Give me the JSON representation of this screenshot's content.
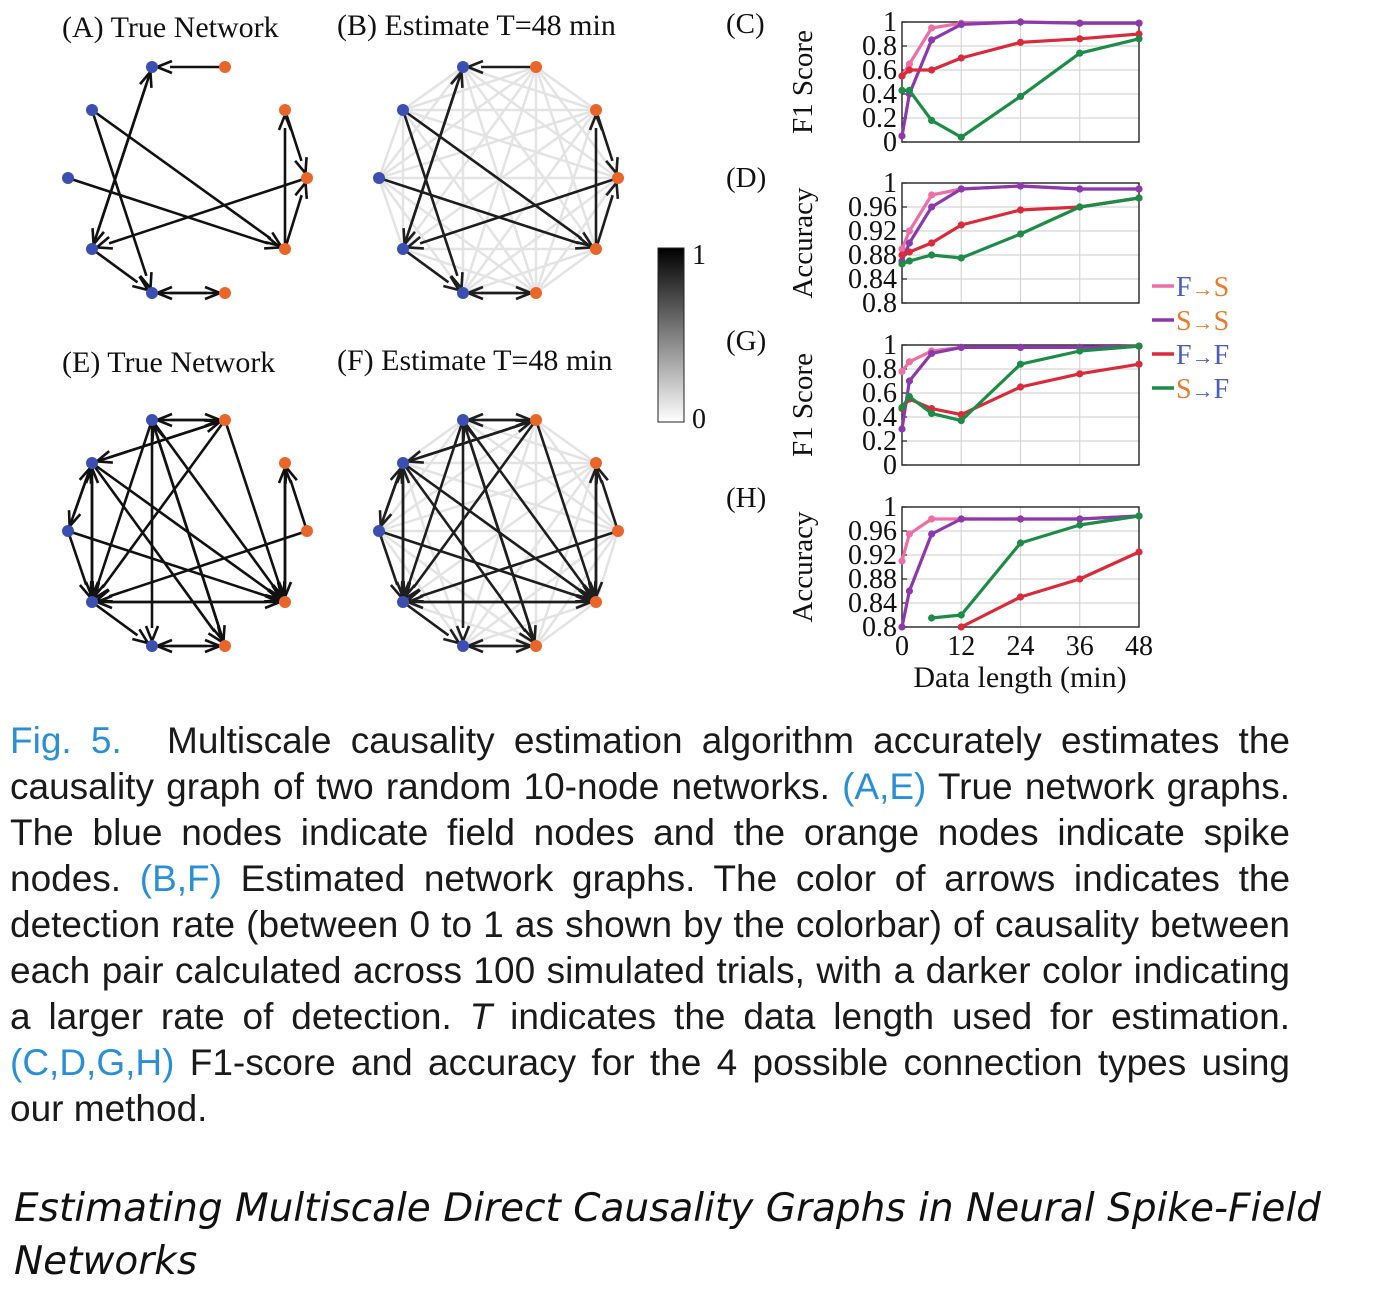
{
  "networks": {
    "titles": {
      "A": "(A) True Network",
      "B": "(B) Estimate T=48 min",
      "E": "(E) True Network",
      "F": "(F) Estimate T=48 min"
    },
    "node_types": [
      "field",
      "field",
      "field",
      "field",
      "field",
      "spike",
      "spike",
      "spike",
      "spike",
      "spike"
    ],
    "colors": {
      "field": "#3a4fb0",
      "spike": "#e8662a"
    },
    "network1_edges": [
      [
        5,
        0
      ],
      [
        1,
        4
      ],
      [
        3,
        0
      ],
      [
        0,
        3
      ],
      [
        2,
        8
      ],
      [
        8,
        6
      ],
      [
        8,
        7
      ],
      [
        6,
        7
      ],
      [
        7,
        3
      ],
      [
        3,
        4
      ],
      [
        4,
        9
      ],
      [
        9,
        4
      ],
      [
        1,
        8
      ]
    ],
    "network2_edges": [
      [
        5,
        0
      ],
      [
        0,
        5
      ],
      [
        1,
        5
      ],
      [
        5,
        1
      ],
      [
        1,
        2
      ],
      [
        2,
        1
      ],
      [
        1,
        3
      ],
      [
        3,
        1
      ],
      [
        0,
        3
      ],
      [
        2,
        3
      ],
      [
        1,
        8
      ],
      [
        2,
        8
      ],
      [
        0,
        8
      ],
      [
        5,
        8
      ],
      [
        6,
        8
      ],
      [
        7,
        6
      ],
      [
        8,
        6
      ],
      [
        7,
        3
      ],
      [
        0,
        9
      ],
      [
        9,
        0
      ],
      [
        4,
        9
      ],
      [
        9,
        4
      ],
      [
        1,
        9
      ],
      [
        8,
        3
      ],
      [
        3,
        8
      ],
      [
        0,
        4
      ],
      [
        3,
        4
      ],
      [
        5,
        3
      ]
    ]
  },
  "colorbar": {
    "max_label": "1",
    "min_label": "0"
  },
  "chart_data": [
    {
      "type": "line",
      "panel": "(C)",
      "ylabel": "F1 Score",
      "x": [
        0,
        1.5,
        6,
        12,
        24,
        36,
        48
      ],
      "ylim": [
        0,
        1
      ],
      "yticks": [
        "0",
        "0.2",
        "0.4",
        "0.6",
        "0.8",
        "1"
      ],
      "series": [
        {
          "name": "F→S",
          "values": [
            0.55,
            0.65,
            0.95,
            0.99,
            1.0,
            0.99,
            0.99
          ]
        },
        {
          "name": "S→S",
          "values": [
            0.05,
            0.4,
            0.85,
            0.98,
            1.0,
            0.99,
            0.99
          ]
        },
        {
          "name": "F→F",
          "values": [
            0.55,
            0.6,
            0.6,
            0.7,
            0.83,
            0.86,
            0.9
          ]
        },
        {
          "name": "S→F",
          "values": [
            0.43,
            0.43,
            0.18,
            0.04,
            0.38,
            0.74,
            0.86
          ]
        }
      ]
    },
    {
      "type": "line",
      "panel": "(D)",
      "ylabel": "Accuracy",
      "x": [
        0,
        1.5,
        6,
        12,
        24,
        36,
        48
      ],
      "ylim": [
        0.8,
        1
      ],
      "yticks": [
        "0.8",
        "0.84",
        "0.88",
        "0.92",
        "0.96",
        "1"
      ],
      "series": [
        {
          "name": "F→S",
          "values": [
            0.89,
            0.92,
            0.98,
            0.99,
            0.995,
            0.99,
            0.99
          ]
        },
        {
          "name": "S→S",
          "values": [
            0.87,
            0.9,
            0.96,
            0.99,
            0.995,
            0.99,
            0.99
          ]
        },
        {
          "name": "F→F",
          "values": [
            0.88,
            0.885,
            0.9,
            0.93,
            0.955,
            0.96,
            0.975
          ]
        },
        {
          "name": "S→F",
          "values": [
            0.865,
            0.87,
            0.88,
            0.875,
            0.915,
            0.96,
            0.975
          ]
        }
      ]
    },
    {
      "type": "line",
      "panel": "(G)",
      "ylabel": "F1 Score",
      "x": [
        0,
        1.5,
        6,
        12,
        24,
        36,
        48
      ],
      "ylim": [
        0,
        1
      ],
      "yticks": [
        "0",
        "0.2",
        "0.4",
        "0.6",
        "0.8",
        "1"
      ],
      "series": [
        {
          "name": "F→S",
          "values": [
            0.78,
            0.86,
            0.95,
            0.98,
            0.98,
            0.98,
            0.99
          ]
        },
        {
          "name": "S→S",
          "values": [
            0.3,
            0.7,
            0.93,
            0.98,
            0.98,
            0.98,
            0.99
          ]
        },
        {
          "name": "F→F",
          "values": [
            0.47,
            0.55,
            0.47,
            0.42,
            0.65,
            0.76,
            0.84
          ]
        },
        {
          "name": "S→F",
          "values": [
            0.48,
            0.57,
            0.43,
            0.37,
            0.84,
            0.95,
            0.99
          ]
        }
      ]
    },
    {
      "type": "line",
      "panel": "(H)",
      "ylabel": "Accuracy",
      "x": [
        0,
        1.5,
        6,
        12,
        24,
        36,
        48
      ],
      "ylim": [
        0.8,
        1
      ],
      "yticks": [
        "0.8",
        "0.84",
        "0.88",
        "0.92",
        "0.96",
        "1"
      ],
      "xticks": [
        "0",
        "12",
        "24",
        "36",
        "48"
      ],
      "xlabel": "Data length (min)",
      "series": [
        {
          "name": "F→S",
          "values": [
            0.91,
            0.955,
            0.98,
            0.98,
            0.98,
            0.98,
            0.985
          ]
        },
        {
          "name": "S→S",
          "values": [
            0.8,
            0.86,
            0.955,
            0.98,
            0.98,
            0.98,
            0.985
          ]
        },
        {
          "name": "F→F",
          "values": [
            null,
            null,
            null,
            0.8,
            0.85,
            0.88,
            0.925
          ]
        },
        {
          "name": "S→F",
          "values": [
            null,
            null,
            0.815,
            0.82,
            0.94,
            0.97,
            0.985
          ]
        }
      ]
    }
  ],
  "legend": [
    {
      "from": "F",
      "arrow": "→",
      "to": "S",
      "color": "#ee6fa5",
      "from_color": "#4b5dc0",
      "to_color": "#ea7b2e"
    },
    {
      "from": "S",
      "arrow": "→",
      "to": "S",
      "color": "#8c3aab",
      "from_color": "#ea7b2e",
      "to_color": "#ea7b2e"
    },
    {
      "from": "F",
      "arrow": "→",
      "to": "F",
      "color": "#d82b3c",
      "from_color": "#4b5dc0",
      "to_color": "#4b5dc0"
    },
    {
      "from": "S",
      "arrow": "→",
      "to": "F",
      "color": "#1e8c48",
      "from_color": "#ea7b2e",
      "to_color": "#4b5dc0"
    }
  ],
  "caption": {
    "label": "Fig. 5.",
    "s1": "Multiscale causality estimation algorithm accurately estimates the causality graph of two random 10-node networks.",
    "ref_ae": "(A,E)",
    "s2": "True network graphs. The blue nodes indicate field nodes and the orange nodes indicate spike nodes.",
    "ref_bf": "(B,F)",
    "s3": "Estimated network graphs. The color of arrows indicates the detection rate (between 0 to 1 as shown by the colorbar) of causality between each pair calculated across 100 simulated trials, with a darker color indicating a larger rate of detection.",
    "t_symbol": "T",
    "s4": "indicates the data length used for estimation.",
    "ref_cdgh": "(C,D,G,H)",
    "s5": "F1-score and accuracy for the 4 possible connection types using our method."
  },
  "paper_title": "Estimating Multiscale Direct Causality Graphs in Neural Spike-Field Networks"
}
